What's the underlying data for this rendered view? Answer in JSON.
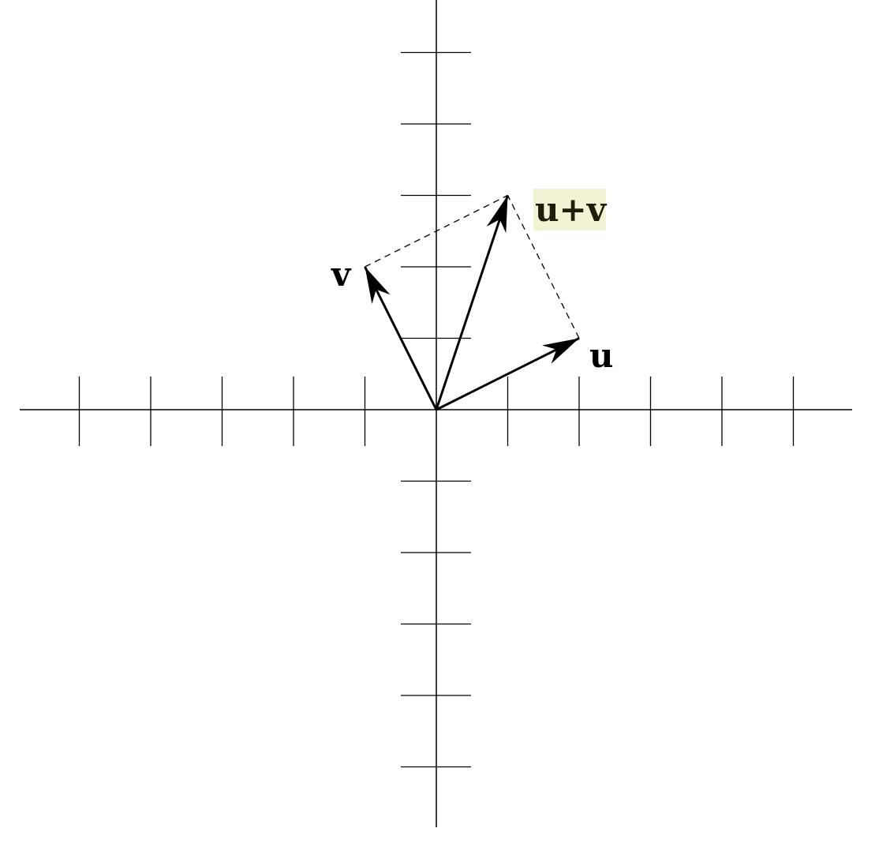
{
  "chart_data": {
    "type": "vector-diagram",
    "title": "",
    "x_ticks": [
      -5,
      -4,
      -3,
      -2,
      -1,
      1,
      2,
      3,
      4,
      5
    ],
    "y_ticks": [
      5,
      4,
      3,
      2,
      1,
      -1,
      -2,
      -3,
      -4,
      -5
    ],
    "vectors": [
      {
        "name": "u",
        "x": 2,
        "y": 1
      },
      {
        "name": "v",
        "x": -1,
        "y": 2
      },
      {
        "name": "u+v",
        "x": 1,
        "y": 3
      }
    ],
    "parallelogram_edges": [
      {
        "from": [
          -1,
          2
        ],
        "to": [
          1,
          3
        ],
        "style": "dashed"
      },
      {
        "from": [
          2,
          1
        ],
        "to": [
          1,
          3
        ],
        "style": "dashed"
      }
    ]
  },
  "labels": {
    "u": "u",
    "v": "v",
    "uv_highlight": "u+",
    "uv_rest": "v"
  },
  "colors": {
    "stroke": "#000000",
    "highlight": "#f2f2d4"
  }
}
